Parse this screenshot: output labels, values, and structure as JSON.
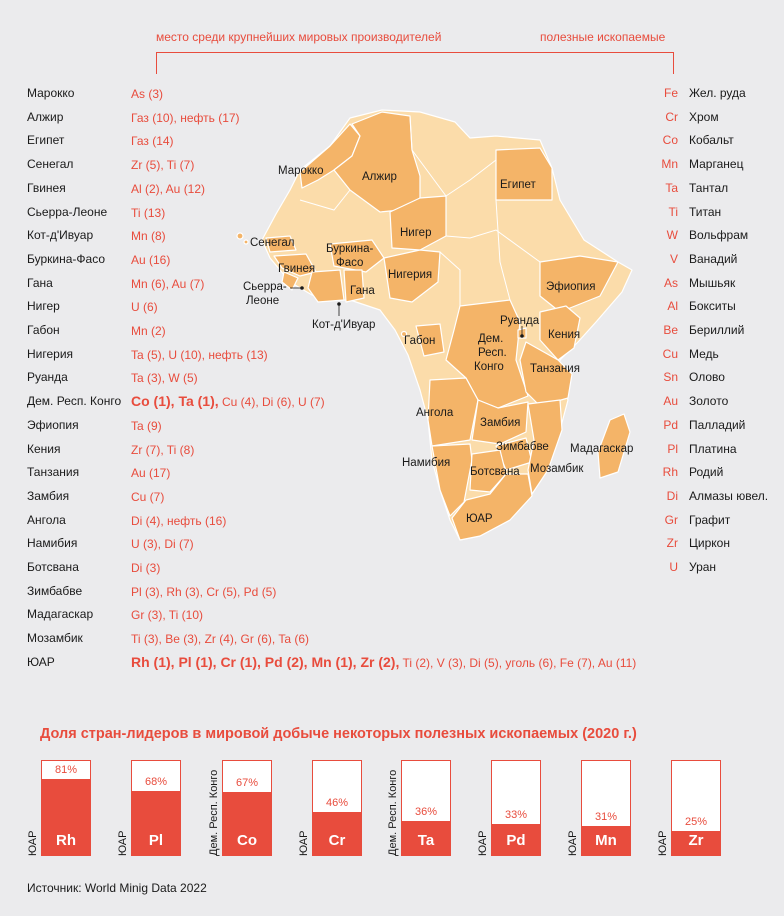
{
  "header": {
    "left": "место среди крупнейших мировых производителей",
    "right": "полезные ископаемые"
  },
  "countries": [
    {
      "name": "Марокко",
      "lead": "",
      "rest": "As (3)"
    },
    {
      "name": "Алжир",
      "lead": "",
      "rest": "Газ (10), нефть (17)"
    },
    {
      "name": "Египет",
      "lead": "",
      "rest": "Газ (14)"
    },
    {
      "name": "Сенегал",
      "lead": "",
      "rest": "Zr (5), Ti (7)"
    },
    {
      "name": "Гвинея",
      "lead": "",
      "rest": "Al (2), Au (12)"
    },
    {
      "name": "Сьерра-Леоне",
      "lead": "",
      "rest": "Ti (13)"
    },
    {
      "name": "Кот-д'Ивуар",
      "lead": "",
      "rest": "Mn (8)"
    },
    {
      "name": "Буркина-Фасо",
      "lead": "",
      "rest": "Au (16)"
    },
    {
      "name": "Гана",
      "lead": "",
      "rest": "Mn (6), Au (7)"
    },
    {
      "name": "Нигер",
      "lead": "",
      "rest": "U (6)"
    },
    {
      "name": "Габон",
      "lead": "",
      "rest": "Mn (2)"
    },
    {
      "name": "Нигерия",
      "lead": "",
      "rest": "Ta (5), U (10), нефть (13)"
    },
    {
      "name": "Руанда",
      "lead": "",
      "rest": "Ta (3), W (5)"
    },
    {
      "name": "Дем. Респ. Конго",
      "lead": "Co (1), Ta (1),",
      "rest": "Cu (4), Di (6), U (7)"
    },
    {
      "name": "Эфиопия",
      "lead": "",
      "rest": "Ta (9)"
    },
    {
      "name": "Кения",
      "lead": "",
      "rest": "Zr (7), Ti (8)"
    },
    {
      "name": "Танзания",
      "lead": "",
      "rest": "Au (17)"
    },
    {
      "name": "Замбия",
      "lead": "",
      "rest": "Cu (7)"
    },
    {
      "name": "Ангола",
      "lead": "",
      "rest": "Di (4), нефть (16)"
    },
    {
      "name": "Намибия",
      "lead": "",
      "rest": "U (3), Di (7)"
    },
    {
      "name": "Ботсвана",
      "lead": "",
      "rest": "Di (3)"
    },
    {
      "name": "Зимбабве",
      "lead": "",
      "rest": "Pl (3), Rh (3), Cr (5), Pd (5)"
    },
    {
      "name": "Мадагаскар",
      "lead": "",
      "rest": "Gr (3), Ti (10)"
    },
    {
      "name": "Мозамбик",
      "lead": "",
      "rest": "Ti (3), Be (3), Zr (4), Gr (6), Ta (6)"
    },
    {
      "name": "ЮАР",
      "lead": "Rh (1), Pl (1), Cr (1), Pd (2), Mn (1), Zr (2),",
      "rest": "Ti (2),  V (3), Di (5), уголь (6), Fe (7), Au (11)"
    }
  ],
  "legend": [
    {
      "sym": "Fe",
      "name": "Жел. руда"
    },
    {
      "sym": "Cr",
      "name": "Хром"
    },
    {
      "sym": "Co",
      "name": "Кобальт"
    },
    {
      "sym": "Mn",
      "name": "Марганец"
    },
    {
      "sym": "Ta",
      "name": "Тантал"
    },
    {
      "sym": "Ti",
      "name": "Титан"
    },
    {
      "sym": "W",
      "name": "Вольфрам"
    },
    {
      "sym": "V",
      "name": "Ванадий"
    },
    {
      "sym": "As",
      "name": "Мышьяк"
    },
    {
      "sym": "Al",
      "name": "Бокситы"
    },
    {
      "sym": "Be",
      "name": "Бериллий"
    },
    {
      "sym": "Cu",
      "name": "Медь"
    },
    {
      "sym": "Sn",
      "name": "Олово"
    },
    {
      "sym": "Au",
      "name": "Золото"
    },
    {
      "sym": "Pd",
      "name": "Палладий"
    },
    {
      "sym": "Pl",
      "name": "Платина"
    },
    {
      "sym": "Rh",
      "name": "Родий"
    },
    {
      "sym": "Di",
      "name": "Алмазы ювел."
    },
    {
      "sym": "Gr",
      "name": "Графит"
    },
    {
      "sym": "Zr",
      "name": "Циркон"
    },
    {
      "sym": "U",
      "name": "Уран"
    }
  ],
  "map": {
    "labels": [
      "Марокко",
      "Алжир",
      "Египет",
      "Нигер",
      "Сенегал",
      "Буркина-",
      "Фасо",
      "Гвинея",
      "Нигерия",
      "Сьерра-",
      "Леоне",
      "Гана",
      "Кот-д'Ивуар",
      "Эфиопия",
      "Руанда",
      "Кения",
      "Дем.",
      "Респ.",
      "Конго",
      "Габон",
      "Танзания",
      "Ангола",
      "Замбия",
      "Зимбабве",
      "Мадагаскар",
      "Намибия",
      "Ботсвана",
      "Мозамбик",
      "ЮАР"
    ],
    "colors": {
      "highlight": "#f4b468",
      "base": "#fbdcaa",
      "border": "#ffffff"
    }
  },
  "chart_data": {
    "type": "bar",
    "title": "Доля стран-лидеров в мировой добыче некоторых полезных ископаемых (2020 г.)",
    "categories": [
      "Rh",
      "Pl",
      "Co",
      "Cr",
      "Ta",
      "Pd",
      "Mn",
      "Zr"
    ],
    "leaders": [
      "ЮАР",
      "ЮАР",
      "Дем. Респ. Конго",
      "ЮАР",
      "Дем. Респ. Конго",
      "ЮАР",
      "ЮАР",
      "ЮАР"
    ],
    "values": [
      81,
      68,
      67,
      46,
      36,
      33,
      31,
      25
    ],
    "value_labels": [
      "81%",
      "68%",
      "67%",
      "46%",
      "36%",
      "33%",
      "31%",
      "25%"
    ],
    "ylim": [
      0,
      100
    ],
    "colors": {
      "fill": "#e84c3d",
      "empty": "#ffffff"
    }
  },
  "source": "Источник: World Minig Data 2022"
}
